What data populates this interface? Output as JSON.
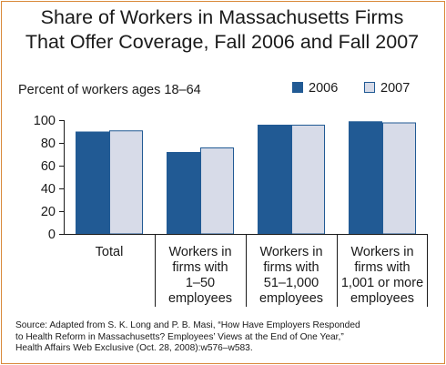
{
  "chart_data": {
    "type": "bar",
    "title_lines": [
      "Share of Workers in Massachusetts Firms",
      "That Offer Coverage, Fall 2006 and Fall 2007"
    ],
    "ylabel": "Percent of workers ages 18–64",
    "categories": [
      [
        "Total"
      ],
      [
        "Workers in",
        "firms with",
        "1–50",
        "employees"
      ],
      [
        "Workers in",
        "firms with",
        "51–1,000",
        "employees"
      ],
      [
        "Workers in",
        "firms with",
        "1,001 or more",
        "employees"
      ]
    ],
    "series": [
      {
        "name": "2006",
        "color": "#215a94",
        "values": [
          90,
          72,
          96,
          99
        ]
      },
      {
        "name": "2007",
        "color": "#d7dbe8",
        "values": [
          91,
          76,
          96,
          98
        ]
      }
    ],
    "ylim": [
      0,
      100
    ],
    "yticks": [
      0,
      20,
      40,
      60,
      80,
      100
    ],
    "legend_position": "top-right",
    "grid": false
  },
  "source_lines": [
    "Source: Adapted from S. K. Long and P. B. Masi, “How Have Employers Responded",
    "to Health Reform in Massachusetts? Employees’ Views at the End of One Year,”",
    "Health Affairs Web Exclusive (Oct. 28, 2008):w576–w583."
  ]
}
